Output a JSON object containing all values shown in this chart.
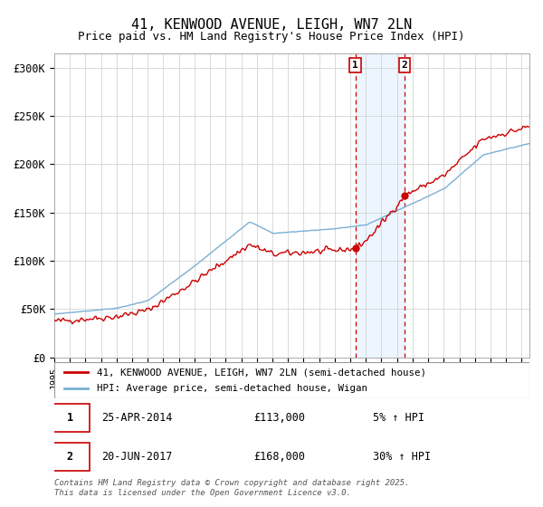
{
  "title": "41, KENWOOD AVENUE, LEIGH, WN7 2LN",
  "subtitle": "Price paid vs. HM Land Registry's House Price Index (HPI)",
  "ylabel_ticks": [
    "£0",
    "£50K",
    "£100K",
    "£150K",
    "£200K",
    "£250K",
    "£300K"
  ],
  "ytick_values": [
    0,
    50000,
    100000,
    150000,
    200000,
    250000,
    300000
  ],
  "ylim": [
    0,
    315000
  ],
  "xlim_start": 1995.0,
  "xlim_end": 2025.5,
  "transaction1_date": 2014.32,
  "transaction1_price": 113000,
  "transaction2_date": 2017.47,
  "transaction2_price": 168000,
  "red_line_color": "#cc0000",
  "blue_line_color": "#7ab0d4",
  "legend_red_label": "41, KENWOOD AVENUE, LEIGH, WN7 2LN (semi-detached house)",
  "legend_blue_label": "HPI: Average price, semi-detached house, Wigan",
  "annotation1_date": "25-APR-2014",
  "annotation1_price": "£113,000",
  "annotation1_hpi": "5% ↑ HPI",
  "annotation2_date": "20-JUN-2017",
  "annotation2_price": "£168,000",
  "annotation2_hpi": "30% ↑ HPI",
  "copyright_text": "Contains HM Land Registry data © Crown copyright and database right 2025.\nThis data is licensed under the Open Government Licence v3.0.",
  "background_color": "#ffffff",
  "grid_color": "#cccccc",
  "shaded_region_color": "#ddeeff",
  "shaded_region_alpha": 0.5,
  "title_fontsize": 11,
  "axis_fontsize": 8.5
}
